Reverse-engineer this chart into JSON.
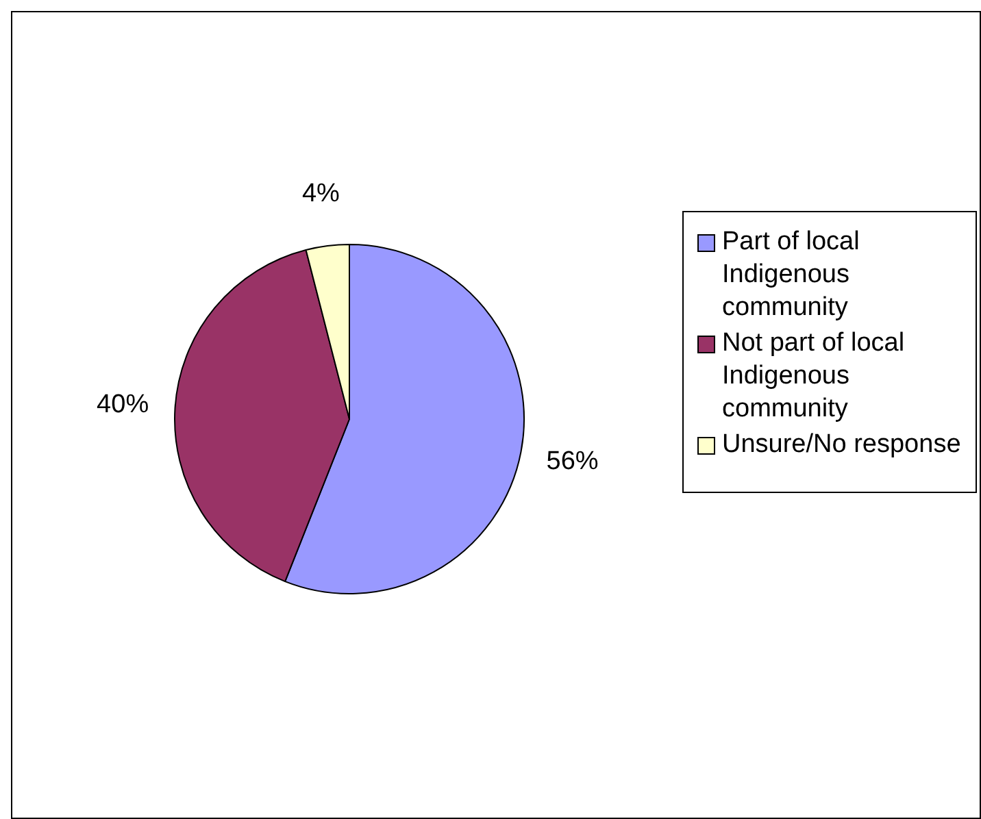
{
  "chart_data": {
    "type": "pie",
    "categories": [
      "Part of local Indigenous community",
      "Not part of local Indigenous community",
      "Unsure/No response"
    ],
    "values": [
      56,
      40,
      4
    ],
    "colors": [
      "#9999ff",
      "#993366",
      "#ffffcc"
    ],
    "value_labels": [
      "56%",
      "40%",
      "4%"
    ],
    "legend": "right"
  }
}
